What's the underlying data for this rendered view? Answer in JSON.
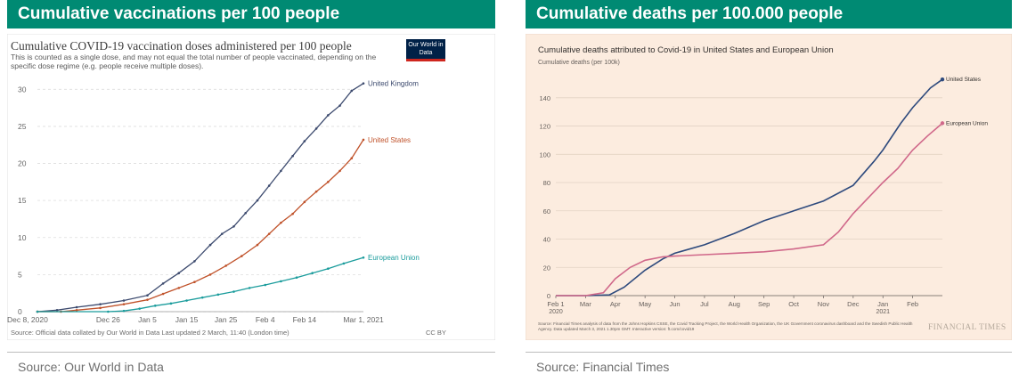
{
  "left": {
    "header": "Cumulative vaccinations per 100 people",
    "source": "Source: Our World in Data",
    "logo": "Our World in Data",
    "chart_data": {
      "type": "line",
      "title": "Cumulative COVID-19 vaccination doses administered per 100 people",
      "subtitle": "This is counted as a single dose, and may not equal the total number of people vaccinated, depending on the specific dose regime (e.g. people receive multiple doses).",
      "footer_left": "Source: Official data collated by Our World in Data    Last updated 2 March, 11:40 (London time)",
      "footer_right": "CC BY",
      "xlabel": "",
      "ylabel": "",
      "x": [
        0,
        8,
        18,
        28,
        38,
        48,
        58,
        68,
        78,
        83
      ],
      "x_ticks": [
        {
          "day": 0,
          "label": "Dec 8, 2020"
        },
        {
          "day": 18,
          "label": "Dec 26"
        },
        {
          "day": 28,
          "label": "Jan 5"
        },
        {
          "day": 38,
          "label": "Jan 15"
        },
        {
          "day": 48,
          "label": "Jan 25"
        },
        {
          "day": 58,
          "label": "Feb 4"
        },
        {
          "day": 68,
          "label": "Feb 14"
        },
        {
          "day": 83,
          "label": "Mar 1, 2021"
        }
      ],
      "xlim": [
        0,
        83
      ],
      "y_ticks": [
        0,
        5,
        10,
        15,
        20,
        25,
        30
      ],
      "ylim": [
        0,
        31
      ],
      "series": [
        {
          "name": "United Kingdom",
          "color": "#3c4a6e",
          "points": [
            [
              0,
              0
            ],
            [
              5,
              0.2
            ],
            [
              10,
              0.6
            ],
            [
              16,
              1
            ],
            [
              22,
              1.5
            ],
            [
              28,
              2.2
            ],
            [
              32,
              3.8
            ],
            [
              36,
              5.2
            ],
            [
              40,
              6.8
            ],
            [
              44,
              9
            ],
            [
              47,
              10.5
            ],
            [
              50,
              11.5
            ],
            [
              53,
              13.3
            ],
            [
              56,
              15
            ],
            [
              59,
              17
            ],
            [
              62,
              19
            ],
            [
              65,
              21
            ],
            [
              68,
              23
            ],
            [
              71,
              24.7
            ],
            [
              74,
              26.5
            ],
            [
              77,
              27.8
            ],
            [
              80,
              29.8
            ],
            [
              83,
              30.8
            ]
          ]
        },
        {
          "name": "United States",
          "color": "#c0522a",
          "points": [
            [
              0,
              0
            ],
            [
              6,
              0
            ],
            [
              10,
              0.2
            ],
            [
              16,
              0.5
            ],
            [
              22,
              1
            ],
            [
              28,
              1.6
            ],
            [
              32,
              2.4
            ],
            [
              36,
              3.2
            ],
            [
              40,
              4
            ],
            [
              44,
              5
            ],
            [
              48,
              6.2
            ],
            [
              52,
              7.5
            ],
            [
              56,
              9
            ],
            [
              59,
              10.5
            ],
            [
              62,
              12
            ],
            [
              65,
              13.2
            ],
            [
              68,
              14.8
            ],
            [
              71,
              16.2
            ],
            [
              74,
              17.5
            ],
            [
              77,
              19
            ],
            [
              80,
              20.7
            ],
            [
              83,
              23.2
            ]
          ]
        },
        {
          "name": "European Union",
          "color": "#1a9c9c",
          "points": [
            [
              0,
              0
            ],
            [
              18,
              0
            ],
            [
              22,
              0.1
            ],
            [
              26,
              0.4
            ],
            [
              30,
              0.8
            ],
            [
              34,
              1.1
            ],
            [
              38,
              1.5
            ],
            [
              42,
              1.9
            ],
            [
              46,
              2.3
            ],
            [
              50,
              2.7
            ],
            [
              54,
              3.2
            ],
            [
              58,
              3.6
            ],
            [
              62,
              4.1
            ],
            [
              66,
              4.6
            ],
            [
              70,
              5.2
            ],
            [
              74,
              5.8
            ],
            [
              78,
              6.5
            ],
            [
              83,
              7.3
            ]
          ]
        }
      ]
    }
  },
  "right": {
    "header": "Cumulative deaths per 100.000 people",
    "source": "Source: Financial Times",
    "brand": "FINANCIAL TIMES",
    "chart_data": {
      "type": "line",
      "title": "Cumulative deaths attributed to Covid-19 in United States and European Union",
      "ylabel": "Cumulative deaths (per 100k)",
      "footer": "Source: Financial Times analysis of data from the Johns Hopkins CSSE, the Covid Tracking Project, the World Health Organization, the UK Government coronavirus dashboard and the Swedish Public Health Agency. Data updated March 3, 2021 1.30pm GMT. Interactive version: ft.com/covid19",
      "x_ticks": [
        {
          "month": 0,
          "label": "Feb 1",
          "sub": "2020"
        },
        {
          "month": 1,
          "label": "Mar"
        },
        {
          "month": 2,
          "label": "Apr"
        },
        {
          "month": 3,
          "label": "May"
        },
        {
          "month": 4,
          "label": "Jun"
        },
        {
          "month": 5,
          "label": "Jul"
        },
        {
          "month": 6,
          "label": "Aug"
        },
        {
          "month": 7,
          "label": "Sep"
        },
        {
          "month": 8,
          "label": "Oct"
        },
        {
          "month": 9,
          "label": "Nov"
        },
        {
          "month": 10,
          "label": "Dec"
        },
        {
          "month": 11,
          "label": "Jan",
          "sub": "2021"
        },
        {
          "month": 12,
          "label": "Feb"
        }
      ],
      "xlim": [
        0,
        13
      ],
      "y_ticks": [
        0,
        20,
        40,
        60,
        80,
        100,
        120,
        140
      ],
      "ylim": [
        0,
        155
      ],
      "series": [
        {
          "name": "United States",
          "color": "#2e4a7d",
          "points": [
            [
              0,
              0
            ],
            [
              1,
              0
            ],
            [
              1.8,
              0.5
            ],
            [
              2.3,
              6
            ],
            [
              3,
              18
            ],
            [
              3.6,
              26
            ],
            [
              4,
              30
            ],
            [
              5,
              36
            ],
            [
              6,
              44
            ],
            [
              7,
              53
            ],
            [
              8,
              60
            ],
            [
              9,
              67
            ],
            [
              10,
              78
            ],
            [
              10.7,
              95
            ],
            [
              11,
              103
            ],
            [
              11.6,
              122
            ],
            [
              12,
              133
            ],
            [
              12.6,
              147
            ],
            [
              13,
              153
            ]
          ]
        },
        {
          "name": "European Union",
          "color": "#d0688a",
          "points": [
            [
              0,
              0
            ],
            [
              1,
              0
            ],
            [
              1.6,
              2
            ],
            [
              2,
              12
            ],
            [
              2.5,
              20
            ],
            [
              3,
              25
            ],
            [
              3.6,
              27.5
            ],
            [
              4,
              28
            ],
            [
              5,
              29
            ],
            [
              6,
              30
            ],
            [
              7,
              31
            ],
            [
              8,
              33
            ],
            [
              9,
              36
            ],
            [
              9.5,
              45
            ],
            [
              10,
              58
            ],
            [
              11,
              80
            ],
            [
              11.5,
              90
            ],
            [
              12,
              103
            ],
            [
              12.5,
              113
            ],
            [
              13,
              122
            ]
          ]
        }
      ]
    }
  }
}
